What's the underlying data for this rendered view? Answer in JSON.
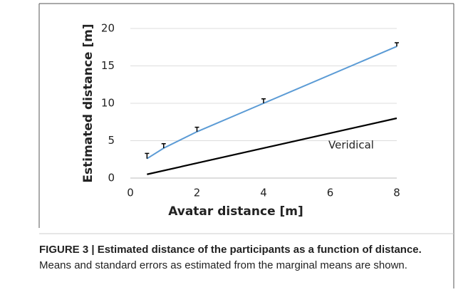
{
  "chart_data": {
    "type": "line",
    "caption_title": "FIGURE 3 | Estimated distance of the participants as a function of distance.",
    "caption_text": "Means and standard errors as estimated from the marginal means are shown.",
    "xlabel": "Avatar distance [m]",
    "ylabel": "Estimated distance [m]",
    "xlim": [
      0,
      8
    ],
    "ylim": [
      0,
      20
    ],
    "xticks": [
      0,
      2,
      4,
      6,
      8
    ],
    "yticks": [
      0,
      5,
      10,
      15,
      20
    ],
    "grid": true,
    "series": [
      {
        "color": "#5b9bd5",
        "x": [
          0.5,
          1,
          2,
          4,
          8
        ],
        "values": [
          2.6,
          4.0,
          6.2,
          10.0,
          17.6
        ],
        "errors": [
          0.7,
          0.6,
          0.6,
          0.6,
          0.5
        ]
      },
      {
        "name": "Veridical",
        "color": "#000000",
        "x": [
          0.5,
          8
        ],
        "values": [
          0.5,
          8
        ]
      }
    ]
  }
}
